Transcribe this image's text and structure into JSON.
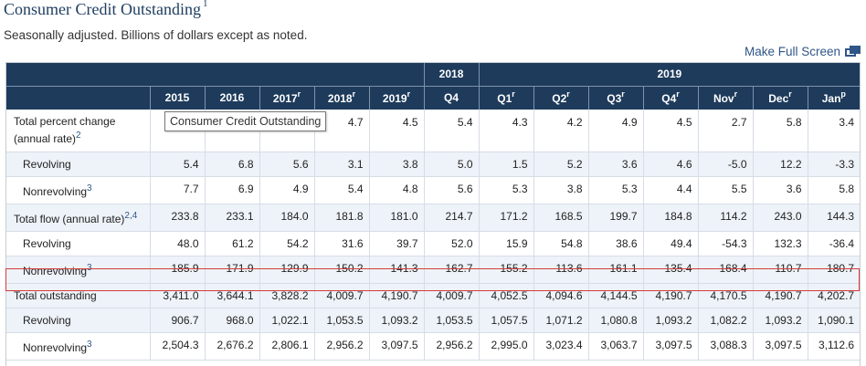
{
  "title": "Consumer Credit Outstanding",
  "title_note": "1",
  "subtitle": "Seasonally adjusted. Billions of dollars except as noted.",
  "full_screen_label": "Make Full Screen",
  "tooltip": "Consumer Credit Outstanding",
  "header": {
    "group_2018": "2018",
    "group_2019": "2019",
    "columns": [
      {
        "label": "2015",
        "mark": ""
      },
      {
        "label": "2016",
        "mark": ""
      },
      {
        "label": "2017",
        "mark": "r"
      },
      {
        "label": "2018",
        "mark": "r"
      },
      {
        "label": "2019",
        "mark": "r"
      },
      {
        "label": "Q4",
        "mark": ""
      },
      {
        "label": "Q1",
        "mark": "r"
      },
      {
        "label": "Q2",
        "mark": "r"
      },
      {
        "label": "Q3",
        "mark": "r"
      },
      {
        "label": "Q4",
        "mark": "r"
      },
      {
        "label": "Nov",
        "mark": "r"
      },
      {
        "label": "Dec",
        "mark": "r"
      },
      {
        "label": "Jan",
        "mark": "p"
      }
    ]
  },
  "rows": [
    {
      "label": "Total percent change",
      "label2": "(annual rate)",
      "note": "2",
      "values": [
        "",
        "",
        "",
        "4.7",
        "4.5",
        "5.4",
        "4.3",
        "4.2",
        "4.9",
        "4.5",
        "2.7",
        "5.8",
        "3.4"
      ]
    },
    {
      "label": "Revolving",
      "label2": "",
      "note": "",
      "values": [
        "5.4",
        "6.8",
        "5.6",
        "3.1",
        "3.8",
        "5.0",
        "1.5",
        "5.2",
        "3.6",
        "4.6",
        "-5.0",
        "12.2",
        "-3.3"
      ]
    },
    {
      "label": "Nonrevolving",
      "label2": "",
      "note": "3",
      "values": [
        "7.7",
        "6.9",
        "4.9",
        "5.4",
        "4.8",
        "5.6",
        "5.3",
        "3.8",
        "5.3",
        "4.4",
        "5.5",
        "3.6",
        "5.8"
      ]
    },
    {
      "label": "Total flow (annual rate)",
      "label2": "",
      "note": "2,4",
      "values": [
        "233.8",
        "233.1",
        "184.0",
        "181.8",
        "181.0",
        "214.7",
        "171.2",
        "168.5",
        "199.7",
        "184.8",
        "114.2",
        "243.0",
        "144.3"
      ]
    },
    {
      "label": "Revolving",
      "label2": "",
      "note": "",
      "values": [
        "48.0",
        "61.2",
        "54.2",
        "31.6",
        "39.7",
        "52.0",
        "15.9",
        "54.8",
        "38.6",
        "49.4",
        "-54.3",
        "132.3",
        "-36.4"
      ]
    },
    {
      "label": "Nonrevolving",
      "label2": "",
      "note": "3",
      "values": [
        "185.9",
        "171.9",
        "129.9",
        "150.2",
        "141.3",
        "162.7",
        "155.2",
        "113.6",
        "161.1",
        "135.4",
        "168.4",
        "110.7",
        "180.7"
      ]
    },
    {
      "label": "Total outstanding",
      "label2": "",
      "note": "",
      "values": [
        "3,411.0",
        "3,644.1",
        "3,828.2",
        "4,009.7",
        "4,190.7",
        "4,009.7",
        "4,052.5",
        "4,094.6",
        "4,144.5",
        "4,190.7",
        "4,170.5",
        "4,190.7",
        "4,202.7"
      ]
    },
    {
      "label": "Revolving",
      "label2": "",
      "note": "",
      "values": [
        "906.7",
        "968.0",
        "1,022.1",
        "1,053.5",
        "1,093.2",
        "1,053.5",
        "1,057.5",
        "1,071.2",
        "1,080.8",
        "1,093.2",
        "1,082.2",
        "1,093.2",
        "1,090.1"
      ]
    },
    {
      "label": "Nonrevolving",
      "label2": "",
      "note": "3",
      "values": [
        "2,504.3",
        "2,676.2",
        "2,806.1",
        "2,956.2",
        "3,097.5",
        "2,956.2",
        "2,995.0",
        "3,023.4",
        "3,063.7",
        "3,097.5",
        "3,088.3",
        "3,097.5",
        "3,112.6"
      ]
    }
  ]
}
